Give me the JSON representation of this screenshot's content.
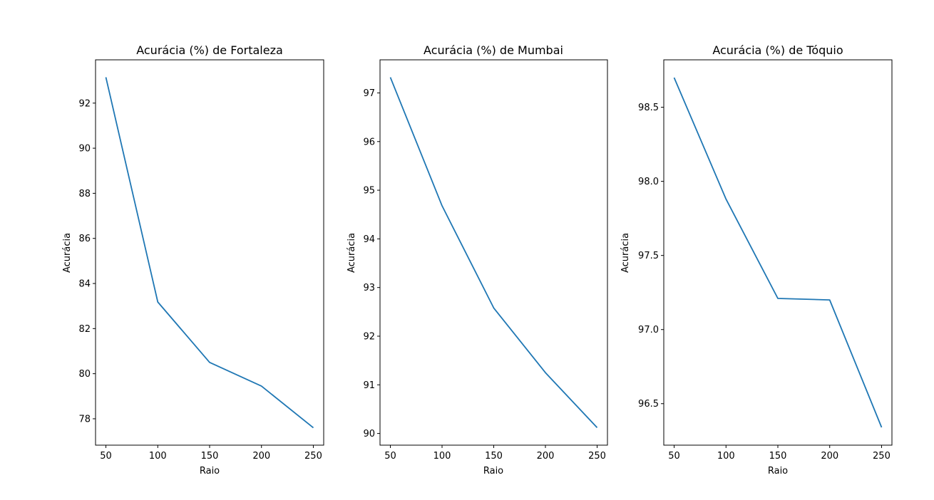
{
  "chart_data": [
    {
      "type": "line",
      "title": "Acurácia (%) de Fortaleza",
      "xlabel": "Raio",
      "ylabel": "Acurácia",
      "x": [
        50,
        100,
        150,
        200,
        250
      ],
      "values": [
        93.15,
        83.18,
        80.5,
        79.45,
        77.6
      ],
      "xlim": [
        40,
        260
      ],
      "ylim": [
        76.83,
        93.92
      ],
      "xticks": [
        50,
        100,
        150,
        200,
        250
      ],
      "yticks": [
        78,
        80,
        82,
        84,
        86,
        88,
        90,
        92
      ],
      "ytick_labels": [
        "78",
        "80",
        "82",
        "84",
        "86",
        "88",
        "90",
        "92"
      ],
      "grid": false,
      "color": "#1f77b4"
    },
    {
      "type": "line",
      "title": "Acurácia (%) de Mumbai",
      "xlabel": "Raio",
      "ylabel": "Acurácia",
      "x": [
        50,
        100,
        150,
        200,
        250
      ],
      "values": [
        97.32,
        94.68,
        92.58,
        91.25,
        90.12
      ],
      "xlim": [
        40,
        260
      ],
      "ylim": [
        89.76,
        97.68
      ],
      "xticks": [
        50,
        100,
        150,
        200,
        250
      ],
      "yticks": [
        90,
        91,
        92,
        93,
        94,
        95,
        96,
        97
      ],
      "ytick_labels": [
        "90",
        "91",
        "92",
        "93",
        "94",
        "95",
        "96",
        "97"
      ],
      "grid": false,
      "color": "#1f77b4"
    },
    {
      "type": "line",
      "title": "Acurácia (%) de Tóquio",
      "xlabel": "Raio",
      "ylabel": "Acurácia",
      "x": [
        50,
        100,
        150,
        200,
        250
      ],
      "values": [
        98.7,
        97.88,
        97.21,
        97.2,
        96.34
      ],
      "xlim": [
        40,
        260
      ],
      "ylim": [
        96.22,
        98.82
      ],
      "xticks": [
        50,
        100,
        150,
        200,
        250
      ],
      "yticks": [
        96.5,
        97.0,
        97.5,
        98.0,
        98.5
      ],
      "ytick_labels": [
        "96.5",
        "97.0",
        "97.5",
        "98.0",
        "98.5"
      ],
      "grid": false,
      "color": "#1f77b4"
    }
  ]
}
